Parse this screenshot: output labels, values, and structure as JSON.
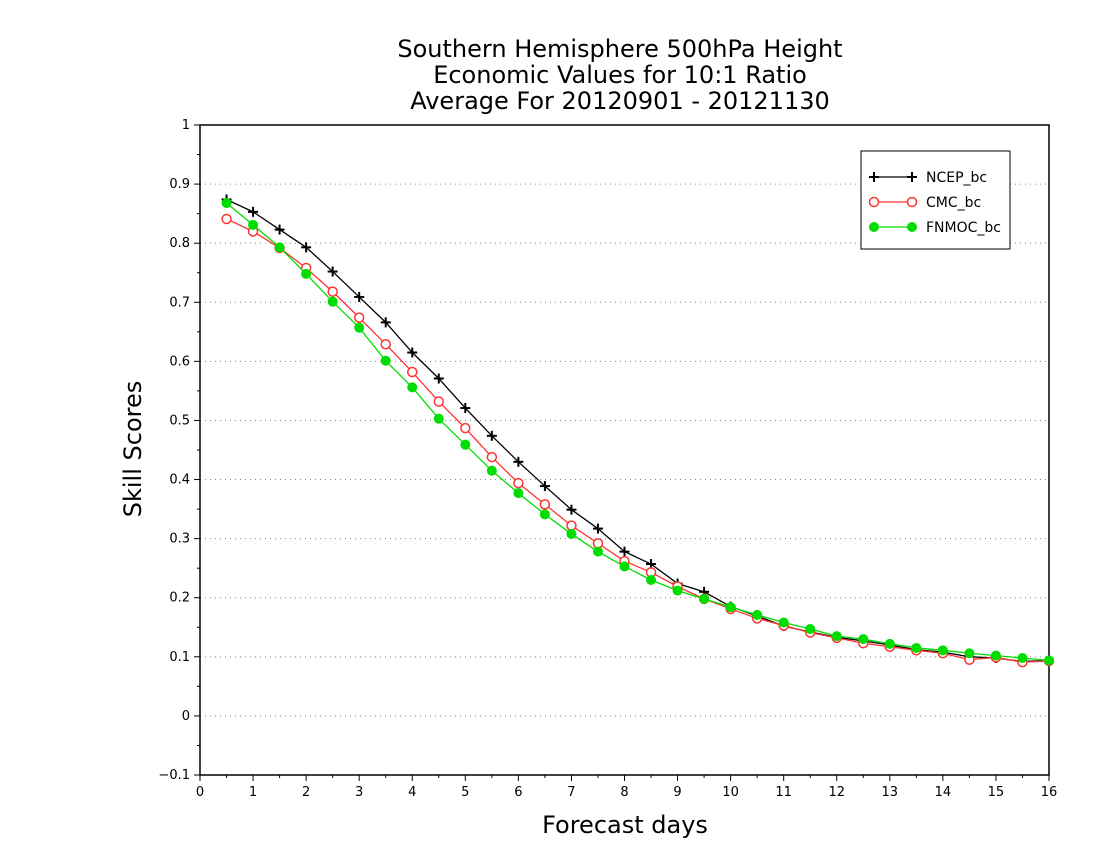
{
  "chart_data": {
    "type": "line",
    "title": [
      "Southern Hemisphere 500hPa Height",
      "Economic Values for 10:1 Ratio",
      "Average For 20120901 - 20121130"
    ],
    "xlabel": "Forecast days",
    "ylabel": "Skill Scores",
    "xlim": [
      0,
      16
    ],
    "ylim": [
      -0.1,
      1
    ],
    "xticks": [
      0,
      1,
      2,
      3,
      4,
      5,
      6,
      7,
      8,
      9,
      10,
      11,
      12,
      13,
      14,
      15,
      16
    ],
    "yticks": [
      -0.1,
      0,
      0.1,
      0.2,
      0.3,
      0.4,
      0.5,
      0.6,
      0.7,
      0.8,
      0.9,
      1
    ],
    "ytick_labels": [
      "−0.1",
      "0",
      "0.1",
      "0.2",
      "0.3",
      "0.4",
      "0.5",
      "0.6",
      "0.7",
      "0.8",
      "0.9",
      "1"
    ],
    "grid": true,
    "legend_position": "top-right",
    "x": [
      0.5,
      1.0,
      1.5,
      2.0,
      2.5,
      3.0,
      3.5,
      4.0,
      4.5,
      5.0,
      5.5,
      6.0,
      6.5,
      7.0,
      7.5,
      8.0,
      8.5,
      9.0,
      9.5,
      10.0,
      10.5,
      11.0,
      11.5,
      12.0,
      12.5,
      13.0,
      13.5,
      14.0,
      14.5,
      15.0,
      15.5,
      16.0
    ],
    "series": [
      {
        "name": "NCEP_bc",
        "color": "#000000",
        "marker": "plus",
        "values": [
          0.874,
          0.853,
          0.823,
          0.793,
          0.752,
          0.709,
          0.666,
          0.615,
          0.571,
          0.521,
          0.474,
          0.43,
          0.389,
          0.349,
          0.317,
          0.278,
          0.257,
          0.224,
          0.21,
          0.185,
          0.169,
          0.152,
          0.142,
          0.133,
          0.127,
          0.12,
          0.112,
          0.108,
          0.1,
          0.098,
          0.092,
          0.094
        ]
      },
      {
        "name": "CMC_bc",
        "color": "#ff3333",
        "marker": "open-circle",
        "values": [
          0.841,
          0.82,
          0.792,
          0.758,
          0.718,
          0.674,
          0.629,
          0.582,
          0.532,
          0.487,
          0.438,
          0.394,
          0.358,
          0.322,
          0.292,
          0.262,
          0.243,
          0.219,
          0.198,
          0.181,
          0.165,
          0.153,
          0.141,
          0.132,
          0.123,
          0.117,
          0.111,
          0.106,
          0.095,
          0.099,
          0.091,
          0.093
        ]
      },
      {
        "name": "FNMOC_bc",
        "color": "#00dd00",
        "marker": "filled-circle",
        "values": [
          0.868,
          0.831,
          0.793,
          0.748,
          0.701,
          0.657,
          0.601,
          0.556,
          0.503,
          0.459,
          0.415,
          0.377,
          0.341,
          0.308,
          0.278,
          0.253,
          0.23,
          0.212,
          0.198,
          0.184,
          0.171,
          0.158,
          0.147,
          0.135,
          0.13,
          0.122,
          0.115,
          0.111,
          0.106,
          0.102,
          0.098,
          0.094
        ]
      }
    ]
  }
}
